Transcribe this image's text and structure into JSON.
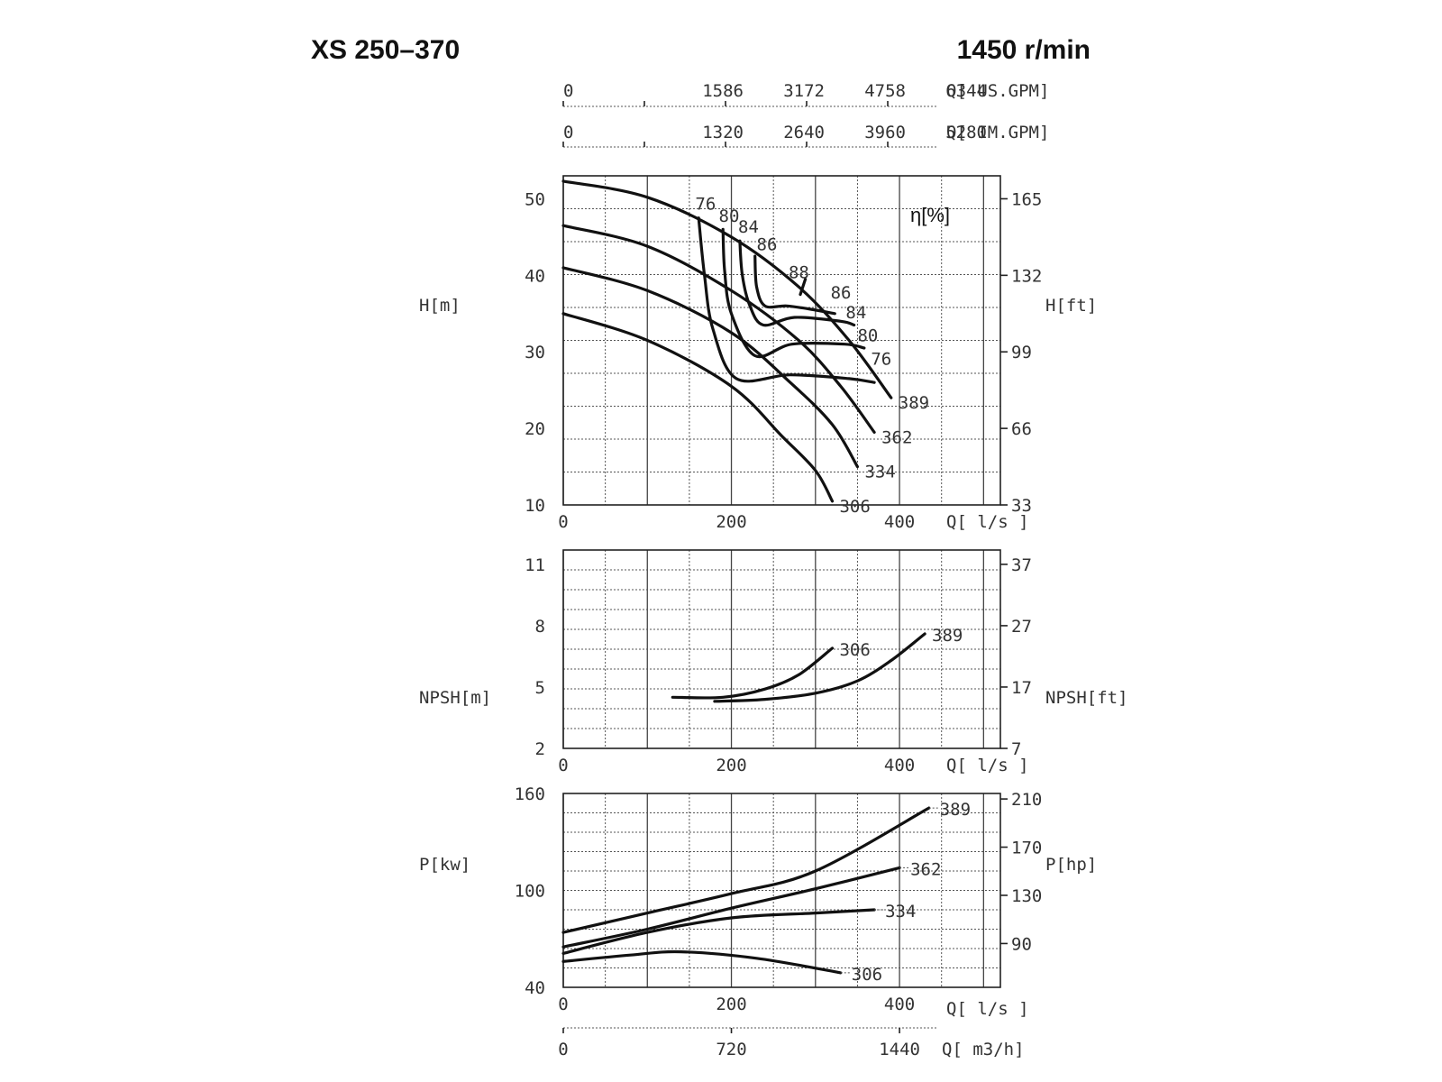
{
  "header": {
    "model": "XS 250–370",
    "speed": "1450 r/min"
  },
  "chart_data": [
    {
      "type": "line",
      "name": "head",
      "ylabel": "H[m]",
      "ylabel_right": "H[ft]",
      "efficiency_label": "η[%]",
      "x_ticks": [
        "0",
        "200",
        "400"
      ],
      "x_unit": "Q[ l/s ]",
      "top_axis_us": {
        "ticks": [
          "0",
          "1586",
          "3172",
          "4758",
          "6344"
        ],
        "unit": "Q[ US.GPM]"
      },
      "top_axis_im": {
        "ticks": [
          "0",
          "1320",
          "2640",
          "3960",
          "5280"
        ],
        "unit": "Q[ IM.GPM]"
      },
      "y_ticks": [
        "10",
        "20",
        "30",
        "40",
        "50"
      ],
      "y_ticks_right": [
        "33",
        "66",
        "99",
        "132",
        "165"
      ],
      "xlim": [
        0,
        520
      ],
      "ylim": [
        10,
        53
      ],
      "series": [
        {
          "name": "389",
          "x": [
            0,
            100,
            200,
            280,
            340,
            390
          ],
          "y": [
            52.3,
            50.2,
            45.0,
            38.5,
            31.5,
            24.0
          ]
        },
        {
          "name": "362",
          "x": [
            0,
            100,
            200,
            280,
            330,
            370
          ],
          "y": [
            46.5,
            43.8,
            38.0,
            31.5,
            25.5,
            19.5
          ]
        },
        {
          "name": "334",
          "x": [
            0,
            100,
            200,
            270,
            320,
            350
          ],
          "y": [
            41.0,
            38.0,
            32.5,
            26.0,
            20.5,
            15.0
          ]
        },
        {
          "name": "306",
          "x": [
            0,
            100,
            200,
            260,
            300,
            320
          ],
          "y": [
            35.0,
            31.5,
            25.5,
            19.0,
            14.5,
            10.5
          ]
        }
      ],
      "efficiency_curves": [
        {
          "name": "76",
          "x": [
            161,
            168,
            178,
            206,
            270,
            340,
            370
          ],
          "y": [
            47.5,
            40.0,
            33.0,
            26.5,
            27.0,
            26.5,
            26.0
          ]
        },
        {
          "name": "80",
          "x": [
            190,
            192,
            200,
            228,
            272,
            335,
            358
          ],
          "y": [
            46.0,
            40.5,
            35.0,
            29.5,
            31.0,
            31.0,
            30.5
          ]
        },
        {
          "name": "84",
          "x": [
            210,
            213,
            222,
            238,
            275,
            330,
            346
          ],
          "y": [
            44.5,
            40.0,
            36.0,
            33.5,
            34.5,
            34.0,
            33.5
          ]
        },
        {
          "name": "86",
          "x": [
            228,
            230,
            240,
            266,
            298,
            323
          ],
          "y": [
            42.5,
            38.5,
            36.0,
            36.0,
            35.5,
            35.0
          ]
        },
        {
          "name": "88",
          "x": [
            282,
            288
          ],
          "y": [
            37.5,
            39.5
          ]
        }
      ],
      "labels_curves": [
        "389",
        "362",
        "334",
        "306"
      ],
      "labels_efficiency": [
        "76",
        "80",
        "84",
        "86",
        "88",
        "86",
        "84",
        "80",
        "76"
      ]
    },
    {
      "type": "line",
      "name": "npsh",
      "ylabel": "NPSH[m]",
      "ylabel_right": "NPSH[ft]",
      "x_ticks": [
        "0",
        "200",
        "400"
      ],
      "x_unit": "Q[ l/s ]",
      "y_ticks": [
        "2",
        "5",
        "8",
        "11"
      ],
      "y_ticks_right": [
        "7",
        "17",
        "27",
        "37"
      ],
      "xlim": [
        0,
        520
      ],
      "ylim": [
        2,
        11.7
      ],
      "series": [
        {
          "name": "306",
          "x": [
            130,
            190,
            240,
            280,
            320
          ],
          "y": [
            4.5,
            4.5,
            4.9,
            5.6,
            6.9
          ]
        },
        {
          "name": "389",
          "x": [
            180,
            240,
            300,
            350,
            390,
            430
          ],
          "y": [
            4.3,
            4.4,
            4.7,
            5.3,
            6.3,
            7.6
          ]
        }
      ]
    },
    {
      "type": "line",
      "name": "power",
      "ylabel": "P[kw]",
      "ylabel_right": "P[hp]",
      "x_ticks": [
        "0",
        "200",
        "400"
      ],
      "x_unit": "Q[ l/s ]",
      "bottom_axis": {
        "ticks": [
          "0",
          "720",
          "1440"
        ],
        "unit": "Q[ m3/h]"
      },
      "y_ticks": [
        "40",
        "100",
        "160"
      ],
      "y_ticks_right": [
        "90",
        "130",
        "170",
        "210"
      ],
      "xlim": [
        0,
        520
      ],
      "ylim": [
        40,
        160
      ],
      "series": [
        {
          "name": "389",
          "x": [
            0,
            100,
            200,
            300,
            435
          ],
          "y": [
            74,
            86,
            98,
            112,
            151
          ]
        },
        {
          "name": "362",
          "x": [
            0,
            100,
            200,
            300,
            400
          ],
          "y": [
            65,
            76,
            89,
            101,
            114
          ]
        },
        {
          "name": "334",
          "x": [
            0,
            100,
            200,
            300,
            370
          ],
          "y": [
            61,
            74,
            83,
            86,
            88
          ]
        },
        {
          "name": "306",
          "x": [
            0,
            80,
            140,
            230,
            330
          ],
          "y": [
            56,
            60,
            62,
            58,
            49
          ]
        }
      ]
    }
  ]
}
